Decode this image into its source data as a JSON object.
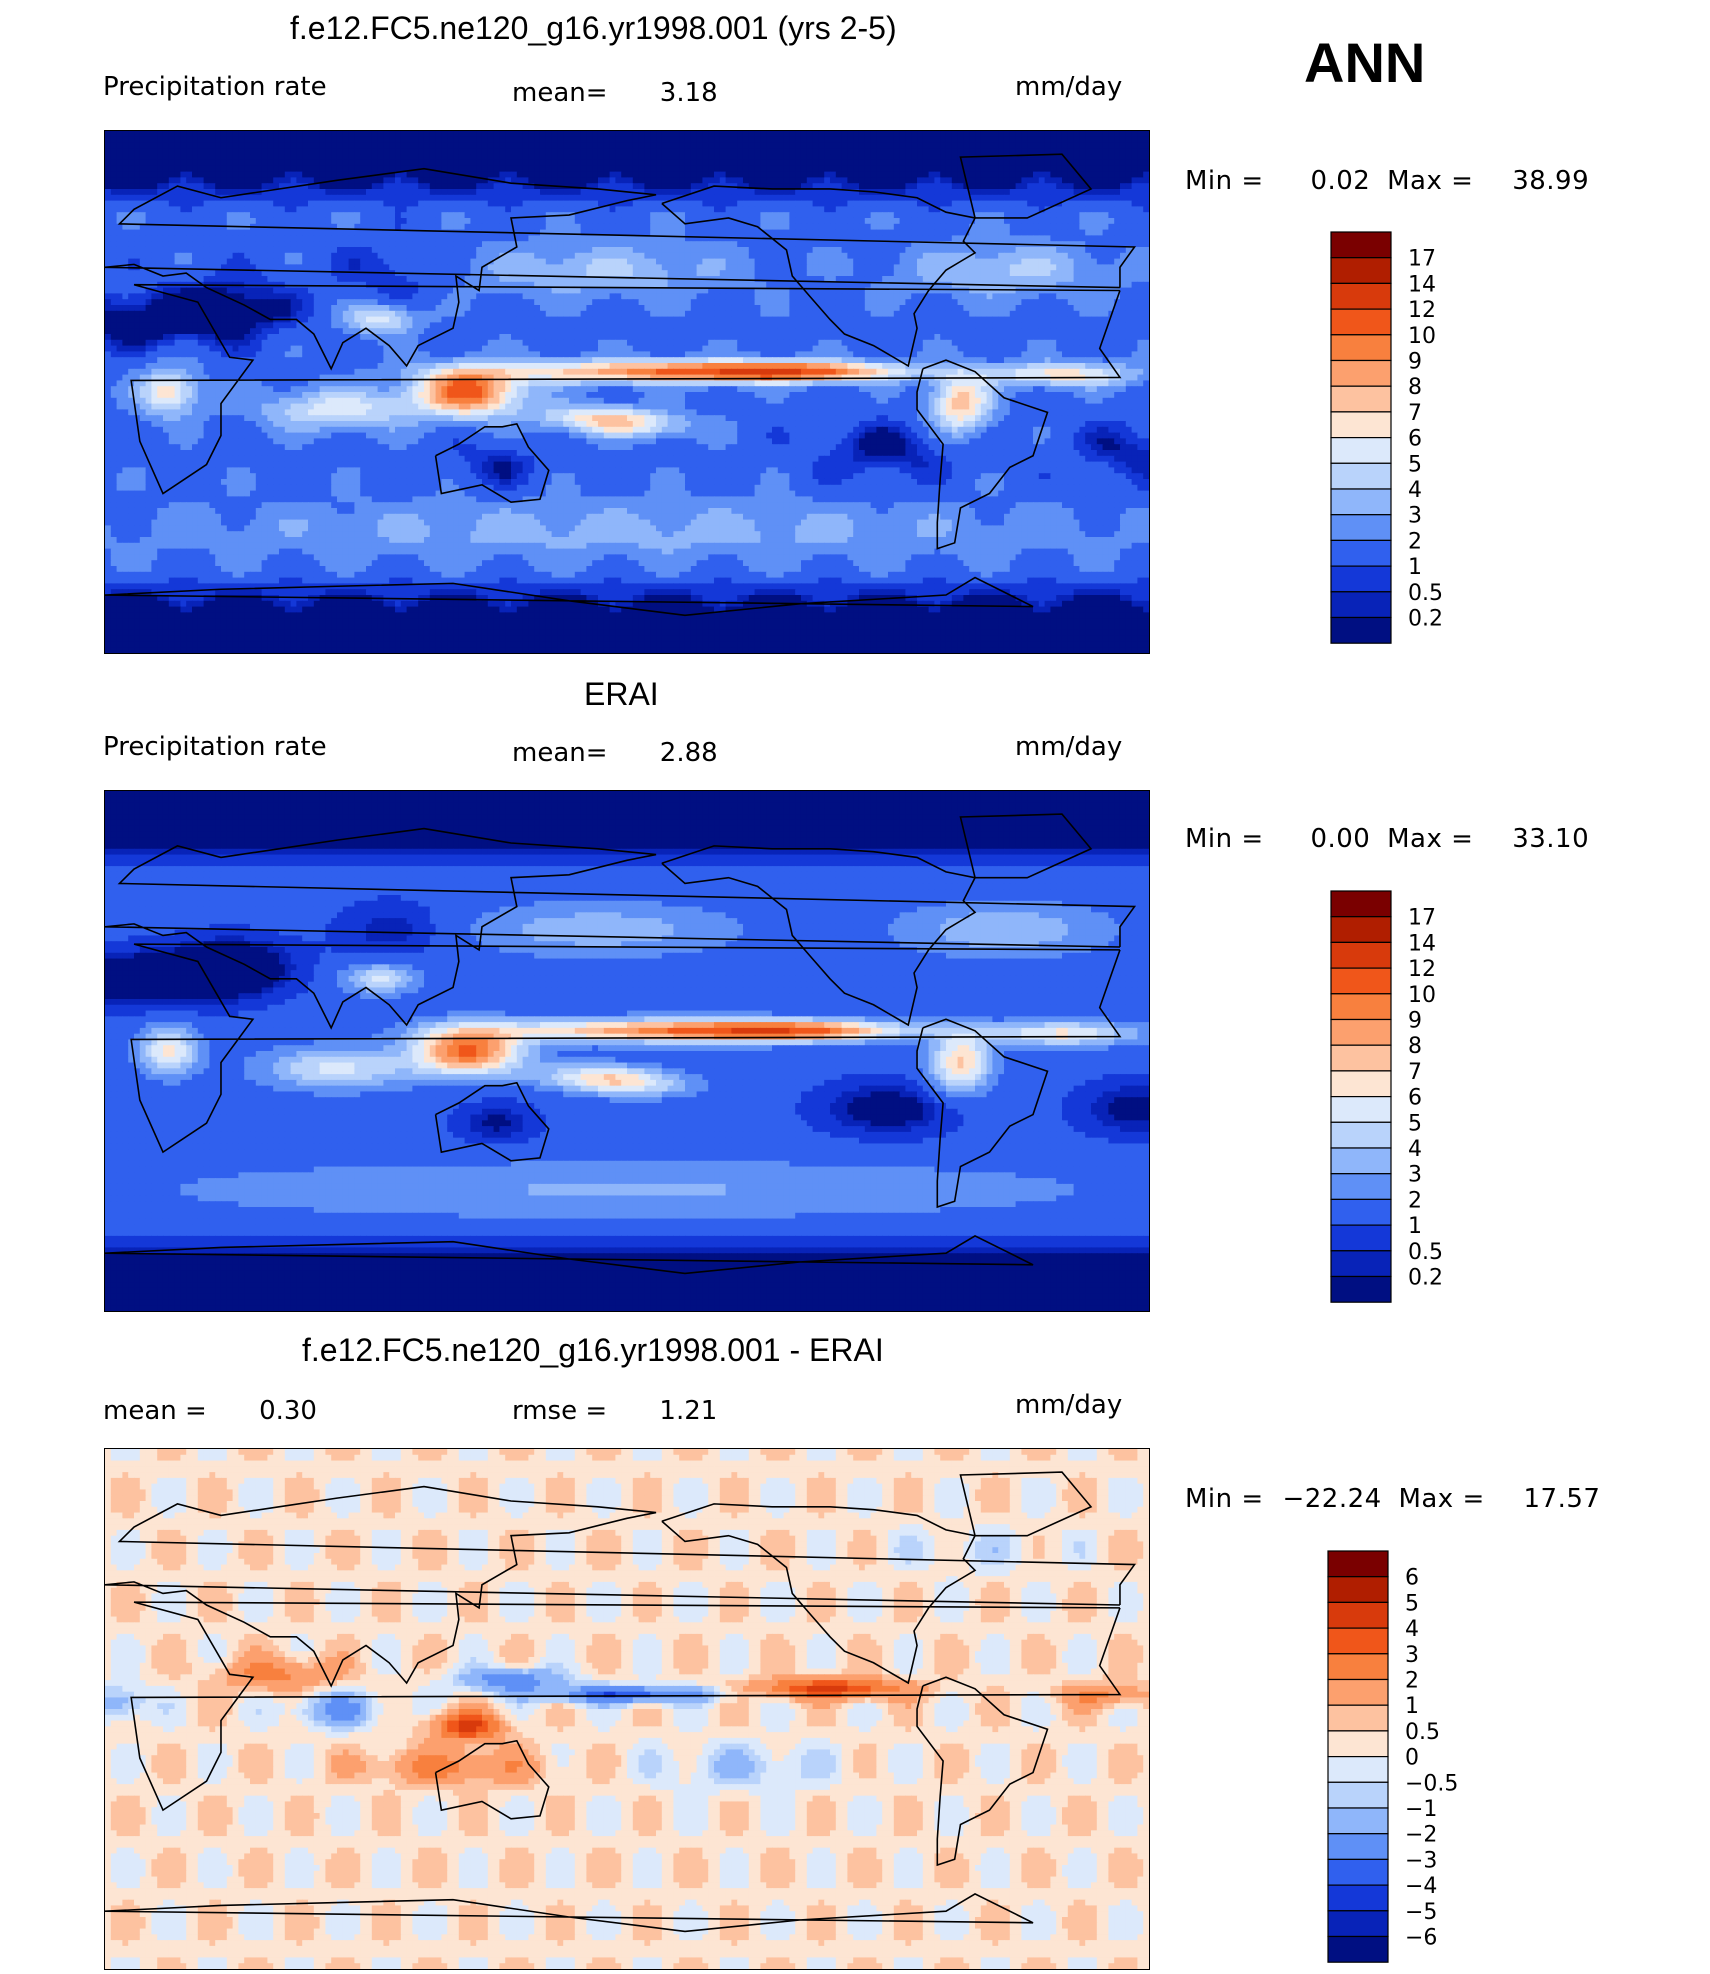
{
  "season": "ANN",
  "panels": [
    {
      "id": "model",
      "title": "f.e12.FC5.ne120_g16.yr1998.001 (yrs 2-5)",
      "left_label": "Precipitation  rate",
      "center_label": "mean=",
      "center_value": "3.18",
      "units": "mm/day",
      "min_label": "Min  =",
      "min_value": "0.02",
      "max_label": "Max  =",
      "max_value": "38.99",
      "colorbar": {
        "levels": [
          "17",
          "14",
          "12",
          "10",
          "9",
          "8",
          "7",
          "6",
          "5",
          "4",
          "3",
          "2",
          "1",
          "0.5",
          "0.2"
        ],
        "colors": [
          "#7a0000",
          "#b01e00",
          "#d83a0c",
          "#f0561a",
          "#f8803e",
          "#fca06e",
          "#fdc2a0",
          "#fde5d3",
          "#dce9fb",
          "#b9d3fb",
          "#8fb6fa",
          "#5f90f6",
          "#3060ee",
          "#1438d8",
          "#0823b8",
          "#000f82"
        ]
      },
      "field": "precip_model"
    },
    {
      "id": "obs",
      "title": "ERAI",
      "left_label": "Precipitation  rate",
      "center_label": "mean=",
      "center_value": "2.88",
      "units": "mm/day",
      "min_label": "Min  =",
      "min_value": "0.00",
      "max_label": "Max  =",
      "max_value": "33.10",
      "colorbar": {
        "levels": [
          "17",
          "14",
          "12",
          "10",
          "9",
          "8",
          "7",
          "6",
          "5",
          "4",
          "3",
          "2",
          "1",
          "0.5",
          "0.2"
        ],
        "colors": [
          "#7a0000",
          "#b01e00",
          "#d83a0c",
          "#f0561a",
          "#f8803e",
          "#fca06e",
          "#fdc2a0",
          "#fde5d3",
          "#dce9fb",
          "#b9d3fb",
          "#8fb6fa",
          "#5f90f6",
          "#3060ee",
          "#1438d8",
          "#0823b8",
          "#000f82"
        ]
      },
      "field": "precip_obs"
    },
    {
      "id": "diff",
      "title": "f.e12.FC5.ne120_g16.yr1998.001 - ERAI",
      "left_label": "mean  =",
      "left_value": "0.30",
      "center_label": "rmse  =",
      "center_value": "1.21",
      "units": "mm/day",
      "min_label": "Min  =",
      "min_value": "−22.24",
      "max_label": "Max  =",
      "max_value": "17.57",
      "colorbar": {
        "levels": [
          "6",
          "5",
          "4",
          "3",
          "2",
          "1",
          "0.5",
          "0",
          "−0.5",
          "−1",
          "−2",
          "−3",
          "−4",
          "−5",
          "−6"
        ],
        "colors": [
          "#7a0000",
          "#b01e00",
          "#d83a0c",
          "#f0561a",
          "#f8803e",
          "#fca06e",
          "#fdc2a0",
          "#fde5d3",
          "#dce9fb",
          "#b9d3fb",
          "#8fb6fa",
          "#5f90f6",
          "#3060ee",
          "#1438d8",
          "#0823b8",
          "#000f82"
        ]
      },
      "field": "precip_diff"
    }
  ]
}
